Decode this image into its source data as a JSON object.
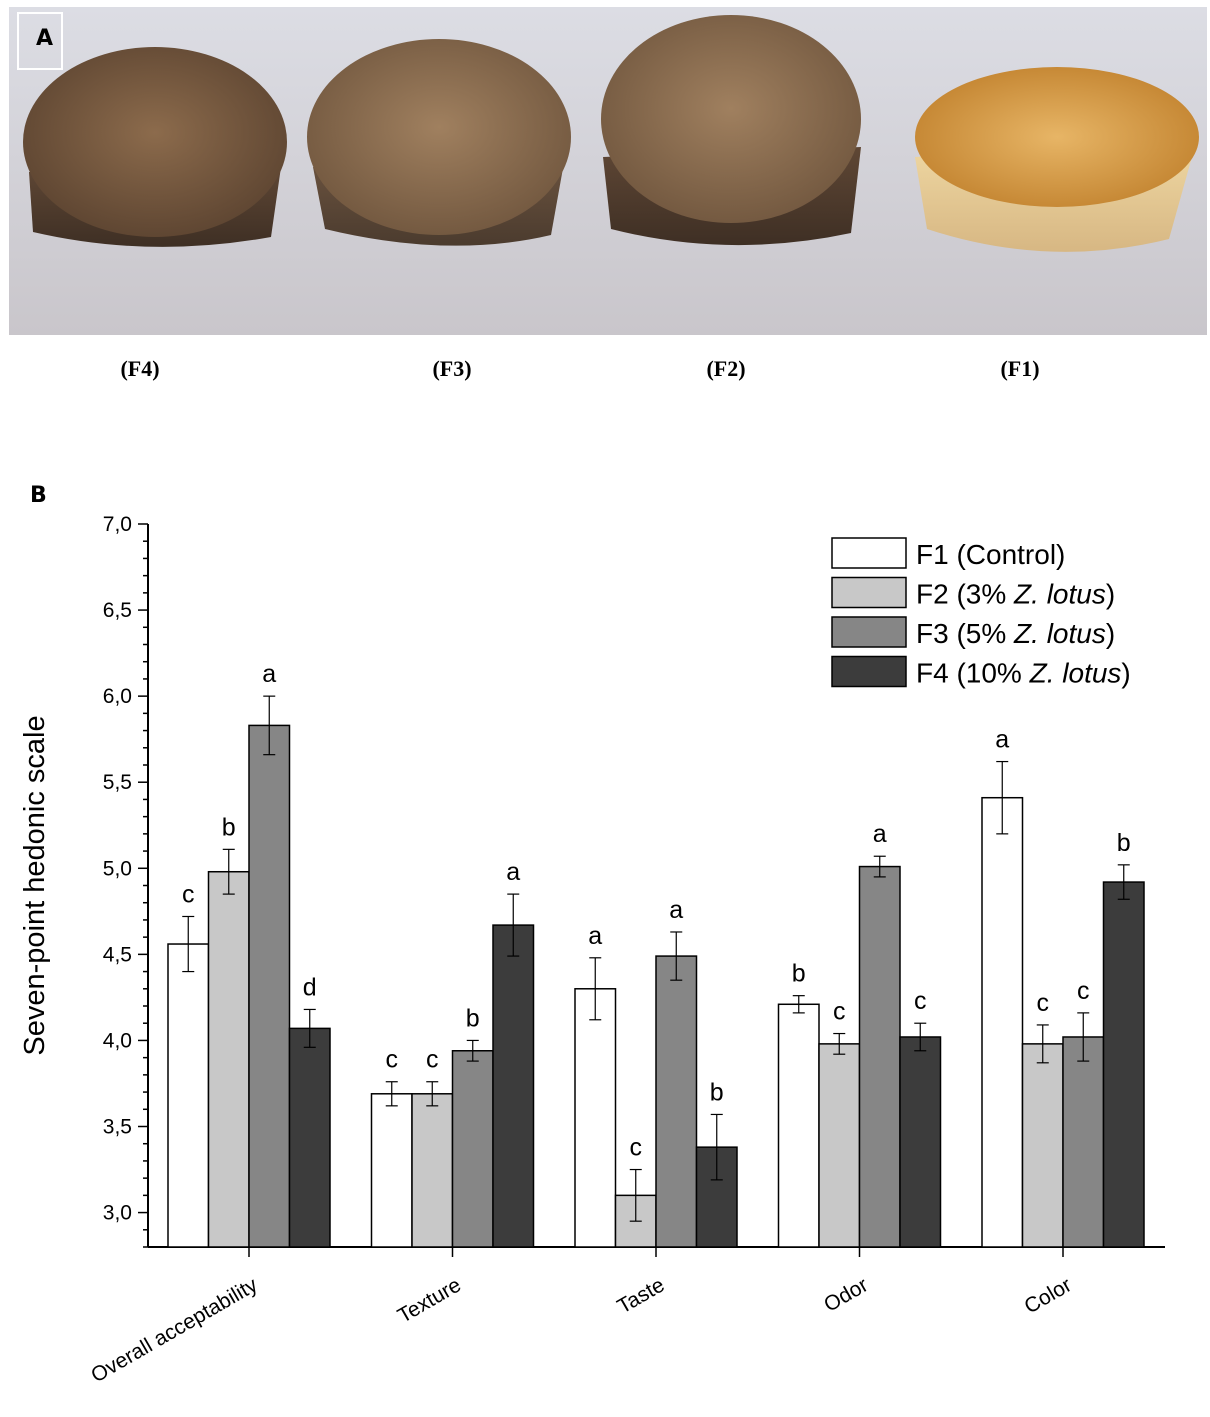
{
  "panel_a": {
    "letter": "A",
    "captions": [
      "(F4)",
      "(F3)",
      "(F2)",
      "(F1)"
    ]
  },
  "panel_b": {
    "letter": "B"
  },
  "colors": {
    "F1": "#ffffff",
    "F2": "#c8c8c8",
    "F3": "#868686",
    "F4": "#3c3c3c"
  },
  "chart_data": {
    "type": "bar",
    "title": "",
    "xlabel": "",
    "ylabel": "Seven-point hedonic scale",
    "ylim": [
      2.8,
      7.0
    ],
    "yticks": [
      "3,0",
      "3,5",
      "4,0",
      "4,5",
      "5,0",
      "5,5",
      "6,0",
      "6,5",
      "7,0"
    ],
    "categories": [
      "Overall acceptability",
      "Texture",
      "Taste",
      "Odor",
      "Color"
    ],
    "legend_position": "top-right",
    "series": [
      {
        "name": "F1 (Control)",
        "legend_prefix": "F1 (Control)",
        "legend_italic": "",
        "legend_suffix": "",
        "values": [
          4.56,
          3.69,
          4.3,
          4.21,
          5.41
        ],
        "errors": [
          0.16,
          0.07,
          0.18,
          0.05,
          0.21
        ],
        "letters": [
          "c",
          "c",
          "a",
          "b",
          "a"
        ]
      },
      {
        "name": "F2 (3% Z. lotus)",
        "legend_prefix": "F2 (3% ",
        "legend_italic": "Z. lotus",
        "legend_suffix": ")",
        "values": [
          4.98,
          3.69,
          3.1,
          3.98,
          3.98
        ],
        "errors": [
          0.13,
          0.07,
          0.15,
          0.06,
          0.11
        ],
        "letters": [
          "b",
          "c",
          "c",
          "c",
          "c"
        ]
      },
      {
        "name": "F3 (5% Z. lotus)",
        "legend_prefix": "F3 (5% ",
        "legend_italic": "Z. lotus",
        "legend_suffix": ")",
        "values": [
          5.83,
          3.94,
          4.49,
          5.01,
          4.02
        ],
        "errors": [
          0.17,
          0.06,
          0.14,
          0.06,
          0.14
        ],
        "letters": [
          "a",
          "b",
          "a",
          "a",
          "c"
        ]
      },
      {
        "name": "F4 (10% Z. lotus)",
        "legend_prefix": "F4 (10% ",
        "legend_italic": "Z. lotus",
        "legend_suffix": ")",
        "values": [
          4.07,
          4.67,
          3.38,
          4.02,
          4.92
        ],
        "errors": [
          0.11,
          0.18,
          0.19,
          0.08,
          0.1
        ],
        "letters": [
          "d",
          "a",
          "b",
          "c",
          "b"
        ]
      }
    ]
  }
}
